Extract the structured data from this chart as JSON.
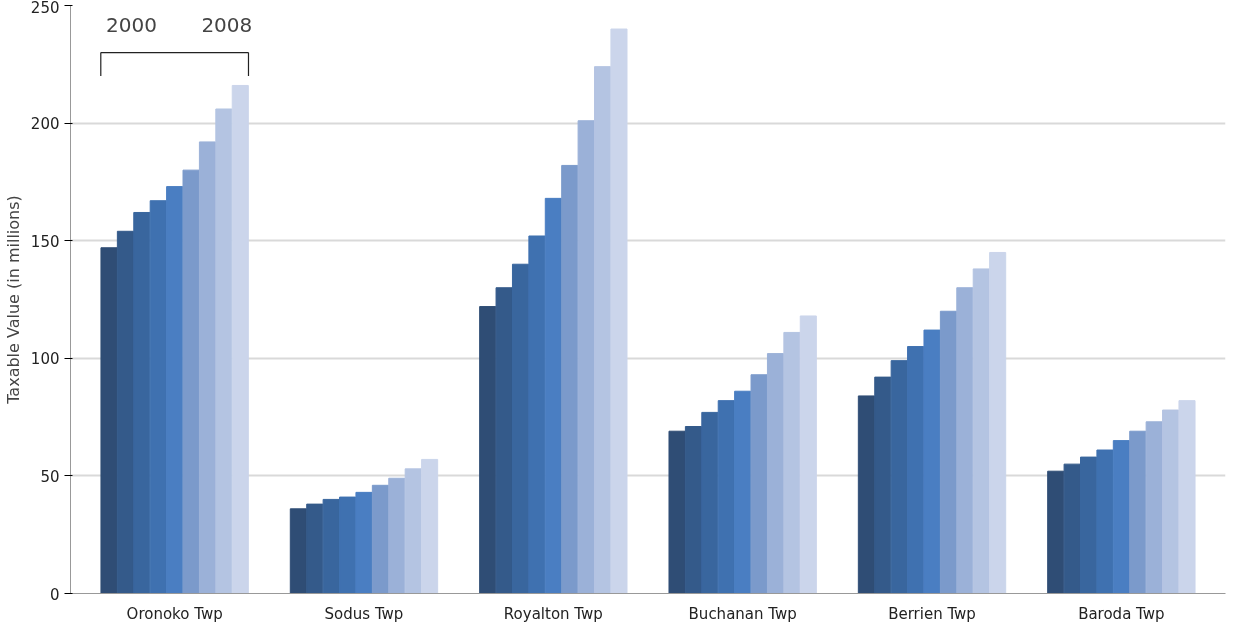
{
  "chart_data": {
    "type": "bar",
    "ylabel": "Taxable Value (in millions)",
    "categories": [
      "Oronoko Twp",
      "Sodus Twp",
      "Royalton Twp",
      "Buchanan Twp",
      "Berrien Twp",
      "Baroda Twp"
    ],
    "series": [
      {
        "color": "#2f4d75",
        "values": [
          147,
          36,
          122,
          69,
          84,
          52
        ]
      },
      {
        "color": "#345a8a",
        "values": [
          154,
          38,
          130,
          71,
          92,
          55
        ]
      },
      {
        "color": "#39669e",
        "values": [
          162,
          40,
          140,
          77,
          99,
          58
        ]
      },
      {
        "color": "#3f71b0",
        "values": [
          167,
          41,
          152,
          82,
          105,
          61
        ]
      },
      {
        "color": "#4a7ec2",
        "values": [
          173,
          43,
          168,
          86,
          112,
          65
        ]
      },
      {
        "color": "#7b9acb",
        "values": [
          180,
          46,
          182,
          93,
          120,
          69
        ]
      },
      {
        "color": "#9bb1d8",
        "values": [
          192,
          49,
          201,
          102,
          130,
          73
        ]
      },
      {
        "color": "#b4c4e2",
        "values": [
          206,
          53,
          224,
          111,
          138,
          78
        ]
      },
      {
        "color": "#cbd5eb",
        "values": [
          216,
          57,
          240,
          118,
          145,
          82
        ]
      }
    ],
    "annotations": [
      "2000",
      "2008"
    ],
    "ylim": [
      0,
      250
    ],
    "yticks": [
      0,
      50,
      100,
      150,
      200,
      250
    ],
    "grid": "y"
  }
}
